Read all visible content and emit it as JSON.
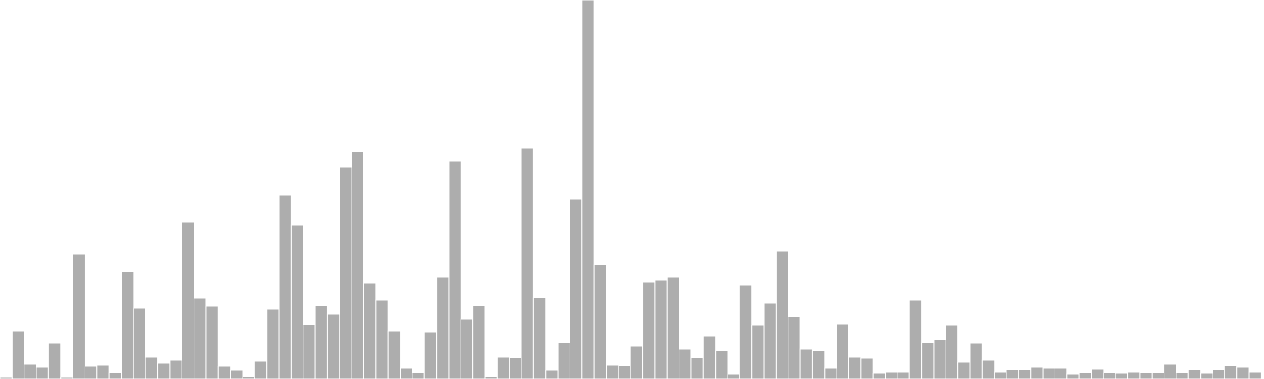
{
  "chart_data": {
    "type": "bar",
    "title": "",
    "xlabel": "",
    "ylabel": "",
    "ylim": [
      0,
      480
    ],
    "grid": false,
    "legend": "none",
    "colors": {
      "bar_fill": "#adadad",
      "bar_stroke": "#ffffff",
      "background": "#ffffff"
    },
    "values": [
      2,
      61,
      19,
      15,
      45,
      2,
      158,
      16,
      18,
      8,
      136,
      90,
      28,
      20,
      24,
      199,
      102,
      92,
      16,
      11,
      3,
      23,
      89,
      233,
      195,
      69,
      93,
      82,
      268,
      288,
      121,
      100,
      61,
      14,
      8,
      59,
      129,
      276,
      76,
      93,
      3,
      28,
      27,
      292,
      103,
      11,
      46,
      228,
      480,
      145,
      18,
      17,
      42,
      123,
      125,
      129,
      38,
      27,
      54,
      36,
      6,
      119,
      68,
      96,
      162,
      79,
      38,
      36,
      14,
      70,
      28,
      26,
      7,
      9,
      9,
      100,
      46,
      50,
      68,
      21,
      45,
      24,
      9,
      12,
      12,
      15,
      14,
      14,
      6,
      8,
      13,
      8,
      7,
      9,
      8,
      8,
      19,
      8,
      12,
      7,
      12,
      17,
      15,
      9
    ]
  }
}
